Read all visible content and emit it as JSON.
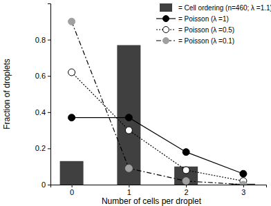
{
  "chart_data": {
    "type": "bar",
    "x_label": "Number of cells per droplet",
    "y_label": "Fraction of droplets",
    "x": [
      0,
      1,
      2,
      3
    ],
    "xlim": [
      -0.37,
      3.4
    ],
    "xticks": [
      0,
      1,
      2,
      3
    ],
    "ylim": [
      0,
      1
    ],
    "yticks": [
      0,
      0.2,
      0.4,
      0.6,
      0.8
    ],
    "legend": "upper right",
    "series": [
      {
        "name": "= Cell ordering (n=460; λ =1.1)",
        "type": "bar",
        "color": "#404040",
        "values": [
          0.13,
          0.77,
          0.1,
          0.005
        ]
      },
      {
        "name": "= Poisson (λ =1)",
        "type": "line",
        "color": "#000000",
        "marker": "circle",
        "line_style": "solid",
        "values": [
          0.37,
          0.37,
          0.18,
          0.06
        ]
      },
      {
        "name": "= Poisson (λ =0.5)",
        "type": "line",
        "color": "#000000",
        "marker": "hollow",
        "line_style": "dotted",
        "values": [
          0.62,
          0.3,
          0.08,
          0.02
        ]
      },
      {
        "name": "= Poisson (λ =0.1)",
        "type": "line",
        "color": "#a0a0a0",
        "marker": "circle",
        "line_style": "dashdot",
        "values": [
          0.9,
          0.09,
          0.02,
          0.0
        ]
      }
    ]
  }
}
